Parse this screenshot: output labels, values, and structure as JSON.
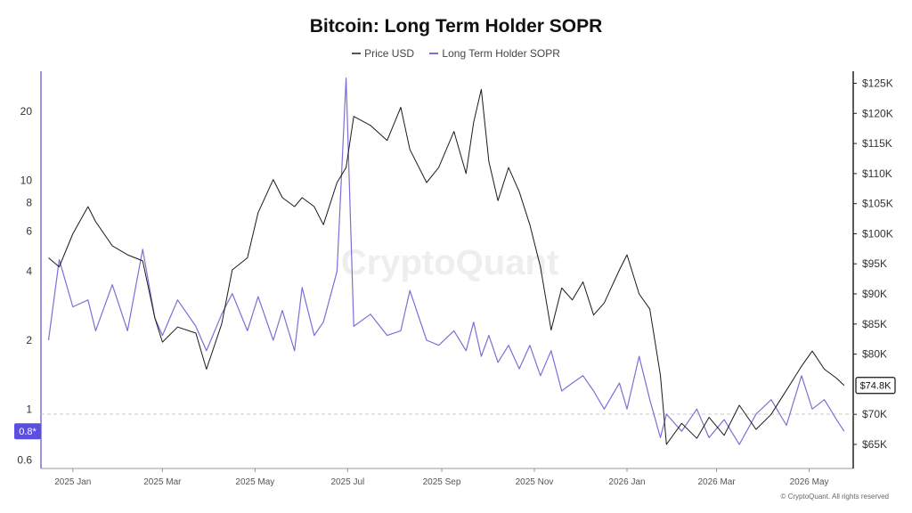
{
  "chart_data": {
    "type": "line",
    "title": "Bitcoin: Long Term Holder SOPR",
    "legend_position": "top-center",
    "grid": false,
    "series": [
      {
        "name": "Price USD",
        "axis": "right",
        "color": "#1a1a1a",
        "x": [
          "2024-12-25",
          "2025-01-01",
          "2025-01-10",
          "2025-01-20",
          "2025-01-25",
          "2025-02-05",
          "2025-02-15",
          "2025-02-25",
          "2025-03-05",
          "2025-03-10",
          "2025-03-20",
          "2025-04-01",
          "2025-04-08",
          "2025-04-18",
          "2025-04-25",
          "2025-05-05",
          "2025-05-12",
          "2025-05-22",
          "2025-05-28",
          "2025-06-05",
          "2025-06-10",
          "2025-06-18",
          "2025-06-24",
          "2025-07-03",
          "2025-07-09",
          "2025-07-14",
          "2025-07-25",
          "2025-08-05",
          "2025-08-14",
          "2025-08-20",
          "2025-08-31",
          "2025-09-08",
          "2025-09-18",
          "2025-09-26",
          "2025-10-01",
          "2025-10-06",
          "2025-10-11",
          "2025-10-17",
          "2025-10-24",
          "2025-10-31",
          "2025-11-07",
          "2025-11-14",
          "2025-11-21",
          "2025-11-28",
          "2025-12-05",
          "2025-12-12",
          "2025-12-19",
          "2025-12-26",
          "2026-01-05",
          "2026-01-10",
          "2026-01-18",
          "2026-01-25",
          "2026-02-01",
          "2026-02-05",
          "2026-02-15",
          "2026-02-25",
          "2026-03-05",
          "2026-03-15",
          "2026-03-25",
          "2026-04-05",
          "2026-04-15",
          "2026-04-25",
          "2026-05-05",
          "2026-05-12",
          "2026-05-20",
          "2026-05-28",
          "2026-06-02"
        ],
        "values": [
          96000,
          94500,
          100000,
          104500,
          102000,
          98000,
          96500,
          95500,
          86000,
          82000,
          84500,
          83500,
          77500,
          85000,
          94000,
          96000,
          103500,
          109000,
          106000,
          104500,
          106000,
          104500,
          101500,
          108500,
          111000,
          119500,
          118000,
          115500,
          121000,
          114000,
          108500,
          111000,
          117000,
          110000,
          118500,
          124000,
          112000,
          105500,
          111000,
          107000,
          101500,
          94500,
          84000,
          91000,
          89000,
          92000,
          86500,
          88500,
          94000,
          96500,
          90000,
          87500,
          76500,
          65000,
          68500,
          66000,
          69500,
          66500,
          71500,
          67500,
          70000,
          74000,
          78000,
          80500,
          77500,
          76000,
          74800
        ]
      },
      {
        "name": "Long Term Holder SOPR",
        "axis": "left",
        "color": "#7b6fd6",
        "x": [
          "2024-12-25",
          "2025-01-01",
          "2025-01-10",
          "2025-01-20",
          "2025-01-25",
          "2025-02-05",
          "2025-02-15",
          "2025-02-25",
          "2025-03-05",
          "2025-03-10",
          "2025-03-20",
          "2025-04-01",
          "2025-04-08",
          "2025-04-18",
          "2025-04-25",
          "2025-05-05",
          "2025-05-12",
          "2025-05-22",
          "2025-05-28",
          "2025-06-05",
          "2025-06-10",
          "2025-06-18",
          "2025-06-24",
          "2025-07-03",
          "2025-07-09",
          "2025-07-14",
          "2025-07-25",
          "2025-08-05",
          "2025-08-14",
          "2025-08-20",
          "2025-08-31",
          "2025-09-08",
          "2025-09-18",
          "2025-09-26",
          "2025-10-01",
          "2025-10-06",
          "2025-10-11",
          "2025-10-17",
          "2025-10-24",
          "2025-10-31",
          "2025-11-07",
          "2025-11-14",
          "2025-11-21",
          "2025-11-28",
          "2025-12-05",
          "2025-12-12",
          "2025-12-19",
          "2025-12-26",
          "2026-01-05",
          "2026-01-10",
          "2026-01-18",
          "2026-01-25",
          "2026-02-01",
          "2026-02-05",
          "2026-02-15",
          "2026-02-25",
          "2026-03-05",
          "2026-03-15",
          "2026-03-25",
          "2026-04-05",
          "2026-04-15",
          "2026-04-25",
          "2026-05-05",
          "2026-05-12",
          "2026-05-20",
          "2026-05-28",
          "2026-06-02"
        ],
        "values": [
          2.0,
          4.5,
          2.8,
          3.0,
          2.2,
          3.5,
          2.2,
          5.0,
          2.5,
          2.1,
          3.0,
          2.3,
          1.8,
          2.6,
          3.2,
          2.2,
          3.1,
          2.0,
          2.7,
          1.8,
          3.4,
          2.1,
          2.4,
          4.0,
          28.0,
          2.3,
          2.6,
          2.1,
          2.2,
          3.3,
          2.0,
          1.9,
          2.2,
          1.8,
          2.4,
          1.7,
          2.1,
          1.6,
          1.9,
          1.5,
          1.9,
          1.4,
          1.8,
          1.2,
          1.3,
          1.4,
          1.2,
          1.0,
          1.3,
          1.0,
          1.7,
          1.1,
          0.75,
          0.95,
          0.8,
          1.0,
          0.75,
          0.9,
          0.7,
          0.95,
          1.1,
          0.85,
          1.4,
          1.0,
          1.1,
          0.9,
          0.8
        ]
      }
    ],
    "left_axis": {
      "scale": "log",
      "range": [
        0.55,
        30
      ],
      "ticks": [
        0.6,
        0.8,
        1,
        2,
        4,
        6,
        8,
        10,
        20
      ],
      "tick_labels": [
        "0.6",
        "0.8",
        "1",
        "2",
        "4",
        "6",
        "8",
        "10",
        "20"
      ]
    },
    "right_axis": {
      "range": [
        61000,
        127000
      ],
      "ticks": [
        65000,
        70000,
        80000,
        85000,
        90000,
        95000,
        100000,
        105000,
        110000,
        115000,
        120000,
        125000
      ],
      "tick_labels": [
        "$65K",
        "$70K",
        "$80K",
        "$85K",
        "$90K",
        "$95K",
        "$100K",
        "$105K",
        "$110K",
        "$115K",
        "$120K",
        "$125K"
      ]
    },
    "x_axis": {
      "range": [
        "2024-12-20",
        "2026-06-08"
      ],
      "ticks": [
        "2025-01-10",
        "2025-03-10",
        "2025-05-10",
        "2025-07-10",
        "2025-09-10",
        "2025-11-10",
        "2026-01-10",
        "2026-03-10",
        "2026-05-10"
      ],
      "tick_labels": [
        "2025 Jan",
        "2025 Mar",
        "2025 May",
        "2025 Jul",
        "2025 Sep",
        "2025 Nov",
        "2026 Jan",
        "2026 Mar",
        "2026 May"
      ]
    },
    "annotations": {
      "sopr_current_label": "0.8*",
      "sopr_current_value": 0.8,
      "price_current_label": "$74.8K",
      "price_current_value": 74800,
      "reference_line_value": 0.95,
      "reference_line_style": "dashed"
    },
    "watermark": "CryptoQuant",
    "credit": "© CryptoQuant. All rights reserved",
    "colors": {
      "price": "#1a1a1a",
      "sopr": "#7b6fd6",
      "sopr_badge": "#5b4fe0",
      "price_badge": "#111111"
    }
  }
}
